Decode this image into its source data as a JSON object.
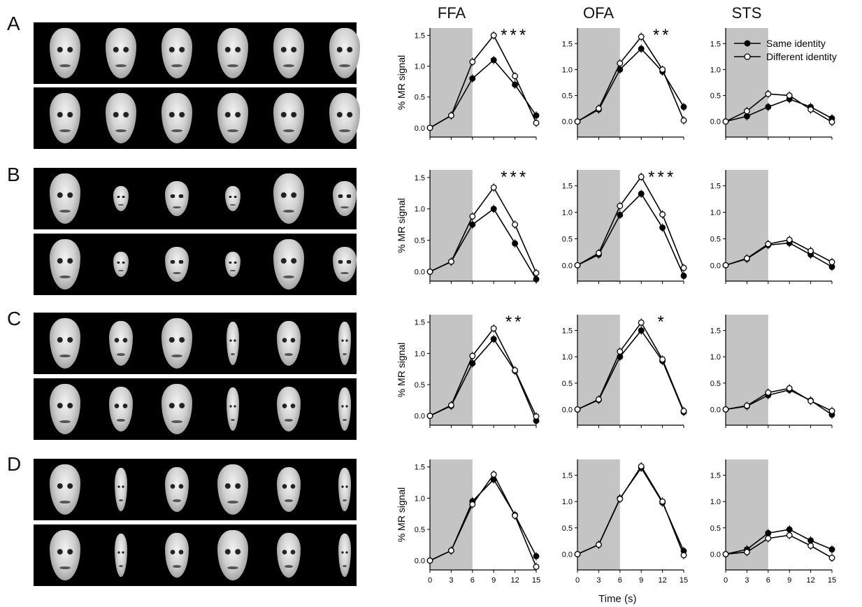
{
  "column_titles": [
    "FFA",
    "OFA",
    "STS"
  ],
  "row_labels": [
    "A",
    "B",
    "C",
    "D"
  ],
  "x_axis_title": "Time (s)",
  "y_axis_label": "% MR signal",
  "legend": {
    "same": "Same identity",
    "different": "Different identity"
  },
  "colors": {
    "shade": "#c4c4c4",
    "line": "#000000",
    "same_fill": "#000000",
    "different_fill": "#ffffff"
  },
  "face_strips": [
    {
      "row": "A",
      "top_sizes": [
        "l",
        "l",
        "l",
        "l",
        "l",
        "l"
      ],
      "bottom_sizes": [
        "l",
        "l",
        "l",
        "l",
        "l",
        "l"
      ]
    },
    {
      "row": "B",
      "top_sizes": [
        "l",
        "s",
        "m",
        "s",
        "l",
        "m"
      ],
      "bottom_sizes": [
        "l",
        "s",
        "m",
        "s",
        "l",
        "m"
      ]
    },
    {
      "row": "C",
      "top_sizes": [
        "l",
        "n",
        "l",
        "t",
        "n",
        "t"
      ],
      "bottom_sizes": [
        "l",
        "n",
        "l",
        "t",
        "n",
        "t"
      ]
    },
    {
      "row": "D",
      "top_sizes": [
        "l",
        "t",
        "n",
        "l",
        "n",
        "t"
      ],
      "bottom_sizes": [
        "l",
        "t",
        "n",
        "l",
        "n",
        "t"
      ]
    }
  ],
  "chart_data": [
    {
      "type": "line",
      "row": "A",
      "region": "FFA",
      "x": [
        0,
        3,
        6,
        9,
        12,
        15
      ],
      "ylim": [
        -0.15,
        1.62
      ],
      "yticks": [
        "0.0",
        "0.5",
        "1.0",
        "1.5"
      ],
      "shaded_x": [
        0,
        6
      ],
      "significance": "***",
      "series": [
        {
          "name": "Same identity",
          "values": [
            0,
            0.2,
            0.8,
            1.1,
            0.7,
            0.2
          ]
        },
        {
          "name": "Different identity",
          "values": [
            0,
            0.2,
            1.07,
            1.5,
            0.84,
            0.08
          ]
        }
      ]
    },
    {
      "type": "line",
      "row": "A",
      "region": "OFA",
      "x": [
        0,
        3,
        6,
        9,
        12,
        15
      ],
      "ylim": [
        -0.3,
        1.8
      ],
      "yticks": [
        "0.0",
        "0.5",
        "1.0",
        "1.5"
      ],
      "shaded_x": [
        0,
        6
      ],
      "significance": "**",
      "series": [
        {
          "name": "Same identity",
          "values": [
            0,
            0.23,
            1.0,
            1.4,
            0.96,
            0.28
          ]
        },
        {
          "name": "Different identity",
          "values": [
            0,
            0.25,
            1.12,
            1.63,
            1.0,
            0.02
          ]
        }
      ]
    },
    {
      "type": "line",
      "row": "A",
      "region": "STS",
      "x": [
        0,
        3,
        6,
        9,
        12,
        15
      ],
      "ylim": [
        -0.3,
        1.8
      ],
      "yticks": [
        "0.0",
        "0.5",
        "1.0",
        "1.5"
      ],
      "shaded_x": [
        0,
        6
      ],
      "significance": "",
      "series": [
        {
          "name": "Same identity",
          "values": [
            0,
            0.1,
            0.28,
            0.43,
            0.28,
            0.06
          ]
        },
        {
          "name": "Different identity",
          "values": [
            0,
            0.2,
            0.53,
            0.5,
            0.23,
            -0.01
          ]
        }
      ]
    },
    {
      "type": "line",
      "row": "B",
      "region": "FFA",
      "x": [
        0,
        3,
        6,
        9,
        12,
        15
      ],
      "ylim": [
        -0.15,
        1.62
      ],
      "yticks": [
        "0.0",
        "0.5",
        "1.0",
        "1.5"
      ],
      "shaded_x": [
        0,
        6
      ],
      "significance": "***",
      "series": [
        {
          "name": "Same identity",
          "values": [
            0,
            0.16,
            0.75,
            1.0,
            0.45,
            -0.12
          ]
        },
        {
          "name": "Different identity",
          "values": [
            0,
            0.16,
            0.88,
            1.34,
            0.75,
            -0.02
          ]
        }
      ]
    },
    {
      "type": "line",
      "row": "B",
      "region": "OFA",
      "x": [
        0,
        3,
        6,
        9,
        12,
        15
      ],
      "ylim": [
        -0.3,
        1.8
      ],
      "yticks": [
        "0.0",
        "0.5",
        "1.0",
        "1.5"
      ],
      "shaded_x": [
        0,
        6
      ],
      "significance": "***",
      "series": [
        {
          "name": "Same identity",
          "values": [
            0,
            0.2,
            0.95,
            1.35,
            0.71,
            -0.2
          ]
        },
        {
          "name": "Different identity",
          "values": [
            0,
            0.23,
            1.12,
            1.67,
            0.96,
            -0.05
          ]
        }
      ]
    },
    {
      "type": "line",
      "row": "B",
      "region": "STS",
      "x": [
        0,
        3,
        6,
        9,
        12,
        15
      ],
      "ylim": [
        -0.3,
        1.8
      ],
      "yticks": [
        "0.0",
        "0.5",
        "1.0",
        "1.5"
      ],
      "shaded_x": [
        0,
        6
      ],
      "significance": "",
      "series": [
        {
          "name": "Same identity",
          "values": [
            0,
            0.12,
            0.38,
            0.42,
            0.2,
            -0.03
          ]
        },
        {
          "name": "Different identity",
          "values": [
            0,
            0.13,
            0.4,
            0.48,
            0.27,
            0.06
          ]
        }
      ]
    },
    {
      "type": "line",
      "row": "C",
      "region": "FFA",
      "x": [
        0,
        3,
        6,
        9,
        12,
        15
      ],
      "ylim": [
        -0.15,
        1.62
      ],
      "yticks": [
        "0.0",
        "0.5",
        "1.0",
        "1.5"
      ],
      "shaded_x": [
        0,
        6
      ],
      "significance": "**",
      "series": [
        {
          "name": "Same identity",
          "values": [
            0,
            0.16,
            0.84,
            1.23,
            0.72,
            -0.08
          ]
        },
        {
          "name": "Different identity",
          "values": [
            0,
            0.17,
            0.96,
            1.4,
            0.73,
            -0.01
          ]
        }
      ]
    },
    {
      "type": "line",
      "row": "C",
      "region": "OFA",
      "x": [
        0,
        3,
        6,
        9,
        12,
        15
      ],
      "ylim": [
        -0.3,
        1.8
      ],
      "yticks": [
        "0.0",
        "0.5",
        "1.0",
        "1.5"
      ],
      "shaded_x": [
        0,
        6
      ],
      "significance": "*",
      "series": [
        {
          "name": "Same identity",
          "values": [
            0,
            0.18,
            1.0,
            1.5,
            0.92,
            -0.05
          ]
        },
        {
          "name": "Different identity",
          "values": [
            0,
            0.19,
            1.1,
            1.65,
            0.95,
            -0.03
          ]
        }
      ]
    },
    {
      "type": "line",
      "row": "C",
      "region": "STS",
      "x": [
        0,
        3,
        6,
        9,
        12,
        15
      ],
      "ylim": [
        -0.3,
        1.8
      ],
      "yticks": [
        "0.0",
        "0.5",
        "1.0",
        "1.5"
      ],
      "shaded_x": [
        0,
        6
      ],
      "significance": "",
      "series": [
        {
          "name": "Same identity",
          "values": [
            0,
            0.06,
            0.27,
            0.37,
            0.17,
            -0.1
          ]
        },
        {
          "name": "Different identity",
          "values": [
            0,
            0.07,
            0.32,
            0.4,
            0.16,
            -0.03
          ]
        }
      ]
    },
    {
      "type": "line",
      "row": "D",
      "region": "FFA",
      "x": [
        0,
        3,
        6,
        9,
        12,
        15
      ],
      "ylim": [
        -0.15,
        1.62
      ],
      "yticks": [
        "0.0",
        "0.5",
        "1.0",
        "1.5"
      ],
      "shaded_x": [
        0,
        6
      ],
      "significance": "",
      "series": [
        {
          "name": "Same identity",
          "values": [
            0,
            0.16,
            0.95,
            1.3,
            0.73,
            0.07
          ]
        },
        {
          "name": "Different identity",
          "values": [
            0,
            0.16,
            0.9,
            1.38,
            0.72,
            -0.1
          ]
        }
      ]
    },
    {
      "type": "line",
      "row": "D",
      "region": "OFA",
      "x": [
        0,
        3,
        6,
        9,
        12,
        15
      ],
      "ylim": [
        -0.3,
        1.8
      ],
      "yticks": [
        "0.0",
        "0.5",
        "1.0",
        "1.5"
      ],
      "shaded_x": [
        0,
        6
      ],
      "significance": "",
      "series": [
        {
          "name": "Same identity",
          "values": [
            0,
            0.18,
            1.06,
            1.64,
            0.98,
            0.06
          ]
        },
        {
          "name": "Different identity",
          "values": [
            0,
            0.18,
            1.05,
            1.67,
            1.0,
            -0.02
          ]
        }
      ]
    },
    {
      "type": "line",
      "row": "D",
      "region": "STS",
      "x": [
        0,
        3,
        6,
        9,
        12,
        15
      ],
      "ylim": [
        -0.3,
        1.8
      ],
      "yticks": [
        "0.0",
        "0.5",
        "1.0",
        "1.5"
      ],
      "shaded_x": [
        0,
        6
      ],
      "significance": "",
      "series": [
        {
          "name": "Same identity",
          "values": [
            0,
            0.09,
            0.4,
            0.47,
            0.26,
            0.09
          ]
        },
        {
          "name": "Different identity",
          "values": [
            0,
            0.04,
            0.3,
            0.36,
            0.16,
            -0.07
          ]
        }
      ]
    }
  ]
}
